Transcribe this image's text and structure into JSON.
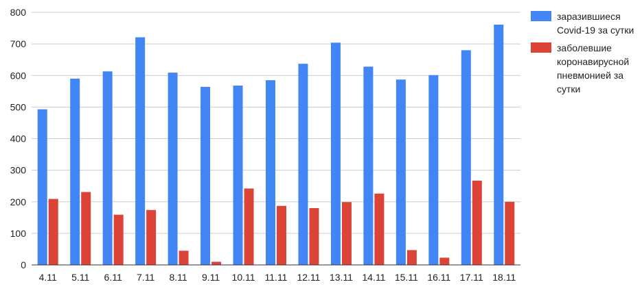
{
  "chart_data": {
    "type": "bar",
    "title": "",
    "xlabel": "",
    "ylabel": "",
    "ylim": [
      0,
      800
    ],
    "yticks": [
      0,
      100,
      200,
      300,
      400,
      500,
      600,
      700,
      800
    ],
    "grid": true,
    "legend_position": "right",
    "categories": [
      "4.11",
      "5.11",
      "6.11",
      "7.11",
      "8.11",
      "9.11",
      "10.11",
      "11.11",
      "12.11",
      "13.11",
      "14.11",
      "15.11",
      "16.11",
      "17.11",
      "18.11"
    ],
    "series": [
      {
        "name": "заразившиеся Covid-19 за сутки",
        "color": "#4285f4",
        "values": [
          493,
          590,
          613,
          721,
          609,
          564,
          568,
          585,
          637,
          704,
          628,
          587,
          601,
          680,
          761
        ]
      },
      {
        "name": "заболевшие коронавирусной пневмонией за сутки",
        "color": "#db4437",
        "values": [
          209,
          231,
          159,
          174,
          45,
          10,
          242,
          187,
          180,
          199,
          226,
          47,
          23,
          267,
          200
        ]
      }
    ]
  },
  "legend": {
    "items": [
      {
        "label": "заразившиеся Covid-19 за сутки",
        "color": "#4285f4"
      },
      {
        "label": "заболевшие коронавирусной пневмонией за сутки",
        "color": "#db4437"
      }
    ]
  }
}
